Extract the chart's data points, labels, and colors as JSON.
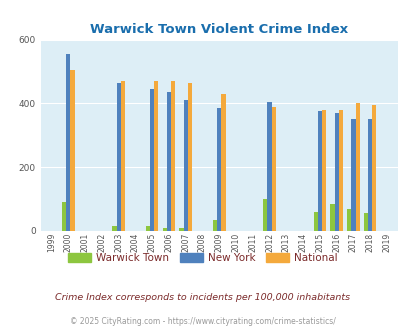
{
  "title": "Warwick Town Violent Crime Index",
  "subtitle": "Crime Index corresponds to incidents per 100,000 inhabitants",
  "footer": "© 2025 CityRating.com - https://www.cityrating.com/crime-statistics/",
  "years": [
    1999,
    2000,
    2001,
    2002,
    2003,
    2004,
    2005,
    2006,
    2007,
    2008,
    2009,
    2010,
    2011,
    2012,
    2013,
    2014,
    2015,
    2016,
    2017,
    2018,
    2019
  ],
  "warwick": [
    0,
    90,
    0,
    0,
    15,
    0,
    15,
    10,
    10,
    0,
    35,
    0,
    0,
    100,
    0,
    0,
    60,
    85,
    70,
    55,
    0
  ],
  "newyork": [
    0,
    555,
    0,
    0,
    465,
    0,
    445,
    435,
    410,
    0,
    385,
    0,
    0,
    405,
    0,
    0,
    375,
    370,
    350,
    350,
    0
  ],
  "national": [
    0,
    505,
    0,
    0,
    470,
    0,
    470,
    470,
    465,
    0,
    430,
    0,
    0,
    390,
    0,
    0,
    380,
    380,
    400,
    395,
    0
  ],
  "warwick_color": "#8dc63f",
  "newyork_color": "#4f81bd",
  "national_color": "#f4a93c",
  "bg_color": "#ddeef6",
  "title_color": "#1a6ead",
  "label_color": "#7b2a2a",
  "footer_color": "#999999",
  "ylim": [
    0,
    600
  ],
  "yticks": [
    0,
    200,
    400,
    600
  ],
  "bar_width": 0.25
}
